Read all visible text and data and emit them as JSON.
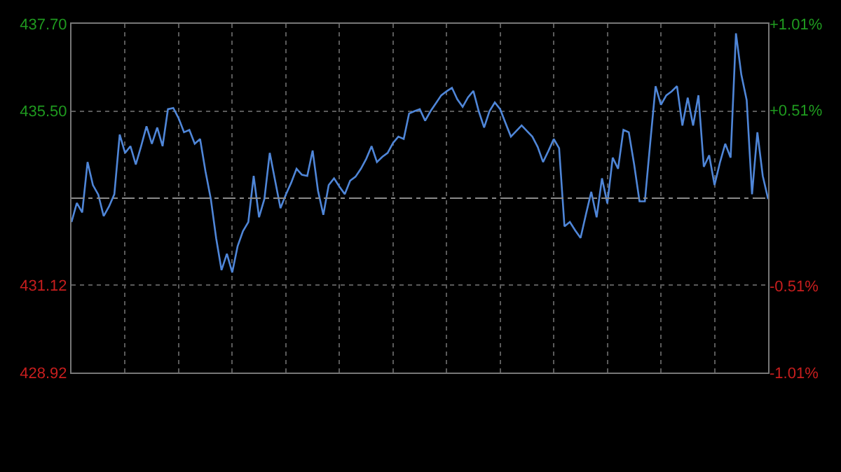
{
  "chart_data": {
    "type": "line",
    "categories": [
      null,
      null,
      null,
      null,
      null,
      null,
      null,
      null,
      null,
      null,
      null,
      null,
      null,
      null,
      null,
      null,
      null,
      null,
      null,
      null,
      null,
      null,
      null,
      null,
      null,
      null,
      null,
      null,
      null,
      null,
      null,
      null,
      null,
      null,
      null,
      null,
      null,
      null,
      null,
      null,
      null,
      null,
      null,
      null,
      null,
      null,
      null,
      null,
      null,
      null,
      null,
      null,
      null,
      null,
      null,
      null,
      null,
      null,
      null,
      null,
      null,
      null,
      null,
      null,
      null,
      null,
      null,
      null,
      null,
      null,
      null,
      null,
      null,
      null,
      null,
      null,
      null,
      null,
      null,
      null,
      null,
      null,
      null,
      null,
      null,
      null,
      null,
      null,
      null,
      null,
      null,
      null,
      null,
      null,
      null,
      null,
      null,
      null,
      null,
      null,
      null,
      null,
      null,
      null,
      null,
      null,
      null,
      null,
      null,
      null,
      null,
      null,
      null,
      null,
      null,
      null,
      null,
      null,
      null,
      null,
      null,
      null,
      null,
      null,
      null,
      null,
      null,
      null,
      null,
      null,
      null
    ],
    "series": [
      {
        "color": "#4f86d8",
        "values": [
          432.71,
          433.19,
          432.95,
          434.22,
          433.64,
          433.4,
          432.86,
          433.1,
          433.41,
          434.91,
          434.45,
          434.62,
          434.16,
          434.62,
          435.12,
          434.68,
          435.09,
          434.62,
          435.55,
          435.58,
          435.32,
          434.97,
          435.03,
          434.68,
          434.8,
          433.99,
          433.29,
          432.3,
          431.5,
          431.91,
          431.44,
          432.1,
          432.48,
          432.71,
          433.87,
          432.83,
          433.29,
          434.45,
          433.75,
          433.06,
          433.4,
          433.7,
          434.05,
          433.9,
          433.87,
          434.51,
          433.5,
          432.89,
          433.64,
          433.81,
          433.6,
          433.41,
          433.75,
          433.85,
          434.05,
          434.3,
          434.62,
          434.22,
          434.35,
          434.45,
          434.7,
          434.86,
          434.8,
          435.44,
          435.5,
          435.55,
          435.26,
          435.5,
          435.7,
          435.9,
          436.0,
          436.09,
          435.8,
          435.61,
          435.85,
          436.01,
          435.5,
          435.09,
          435.5,
          435.72,
          435.55,
          435.2,
          434.86,
          435.0,
          435.14,
          435.0,
          434.86,
          434.6,
          434.22,
          434.5,
          434.8,
          434.57,
          432.6,
          432.71,
          432.5,
          432.31,
          432.9,
          433.47,
          432.83,
          433.81,
          433.18,
          434.33,
          434.05,
          435.03,
          434.97,
          434.16,
          433.23,
          433.23,
          434.7,
          436.13,
          435.66,
          435.9,
          436.0,
          436.13,
          435.14,
          435.84,
          435.14,
          435.9,
          434.1,
          434.39,
          433.64,
          434.2,
          434.68,
          434.33,
          437.46,
          436.42,
          435.78,
          433.41,
          434.97,
          433.87,
          433.29
        ]
      }
    ],
    "ylim": [
      428.92,
      437.7
    ],
    "yticks": [
      {
        "value": 428.92,
        "label": "428.92"
      },
      {
        "value": 431.12,
        "label": "431.12"
      },
      {
        "value": 435.5,
        "label": "435.50"
      },
      {
        "value": 437.7,
        "label": "437.70"
      }
    ],
    "y2lim": [
      -1.01,
      1.01
    ],
    "y2ticks": [
      {
        "value": -1.01,
        "label": "-1.01%"
      },
      {
        "value": -0.51,
        "label": "-0.51%"
      },
      {
        "value": 0.51,
        "label": "+0.51%"
      },
      {
        "value": 1.01,
        "label": "+1.01%"
      }
    ],
    "ref_lines": [
      {
        "axis": "y",
        "value": 433.31,
        "color": "#8a8a8a",
        "line_style": "dashdot"
      }
    ],
    "grid": true,
    "tick_labels": "y"
  }
}
